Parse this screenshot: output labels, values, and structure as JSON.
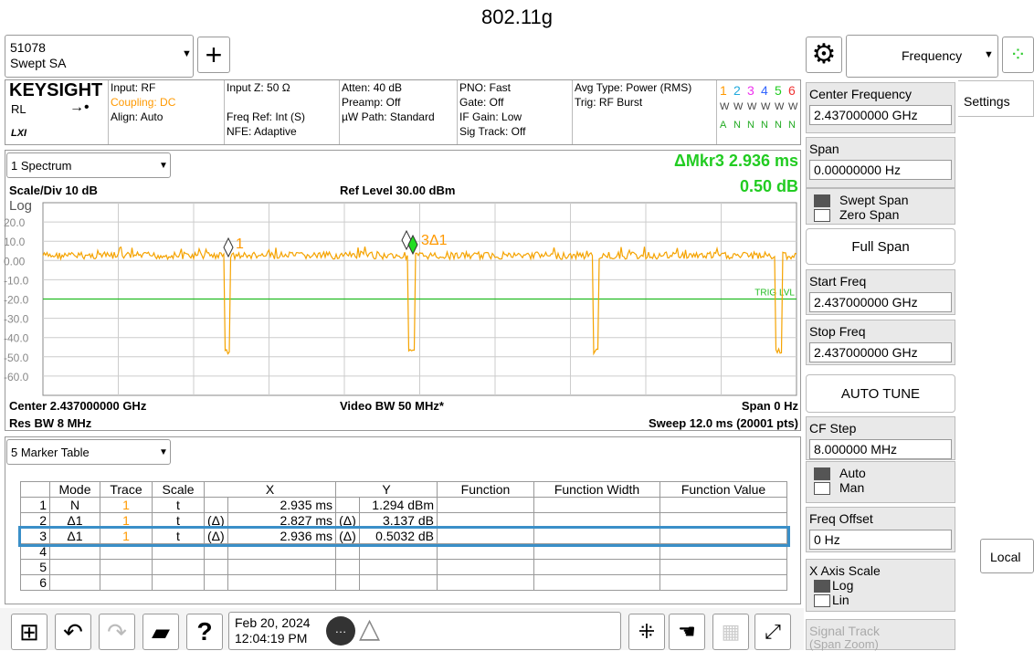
{
  "title": "802.11g",
  "top_bar": {
    "instrument": "51078",
    "mode": "Swept SA",
    "menu": "Frequency"
  },
  "info_bar": {
    "logo": "KEYSIGHT",
    "rl": "RL",
    "lxi": "LXI",
    "columns": [
      [
        "Input: RF",
        "Coupling: DC",
        "Align: Auto"
      ],
      [
        "Input Z: 50 Ω",
        "Freq Ref: Int (S)",
        "NFE: Adaptive"
      ],
      [
        "Atten: 40 dB",
        "Preamp: Off",
        "µW Path: Standard"
      ],
      [
        "PNO: Fast",
        "Gate: Off",
        "IF Gain: Low",
        "Sig Track: Off"
      ],
      [
        "Avg Type: Power (RMS)",
        "Trig: RF Burst"
      ]
    ],
    "trace_numbers": [
      "1",
      "2",
      "3",
      "4",
      "5",
      "6"
    ],
    "trace_types": [
      "W",
      "W",
      "W",
      "W",
      "W",
      "W"
    ],
    "trace_detectors": [
      "A",
      "N",
      "N",
      "N",
      "N",
      "N"
    ]
  },
  "spectrum": {
    "window": "1 Spectrum",
    "marker_readout": "ΔMkr3  2.936 ms",
    "marker_value": "0.50 dB",
    "scale": "Scale/Div 10 dB",
    "ref_level": "Ref Level 30.00 dBm",
    "log": "Log",
    "y_labels": [
      "20.0",
      "10.0",
      "0.00",
      "-10.0",
      "-20.0",
      "-30.0",
      "-40.0",
      "-50.0",
      "-60.0"
    ],
    "trig_label": "TRIG LVL",
    "markers": [
      "1",
      "3Δ1"
    ],
    "center": "Center 2.437000000 GHz",
    "video_bw": "Video BW 50 MHz*",
    "span": "Span 0 Hz",
    "res_bw": "Res BW 8 MHz",
    "sweep": "Sweep 12.0 ms (20001 pts)"
  },
  "marker_table": {
    "window": "5 Marker Table",
    "headers": [
      "Mode",
      "Trace",
      "Scale",
      "X",
      "Y",
      "Function",
      "Function Width",
      "Function Value"
    ],
    "rows": [
      {
        "n": "1",
        "mode": "N",
        "trace": "1",
        "scale": "t",
        "x": "2.935 ms",
        "y": "1.294 dBm"
      },
      {
        "n": "2",
        "mode": "Δ1",
        "trace": "1",
        "scale": "t",
        "x_ref": "(Δ)",
        "x": "2.827 ms",
        "y_ref": "(Δ)",
        "y": "3.137 dB"
      },
      {
        "n": "3",
        "mode": "Δ1",
        "trace": "1",
        "scale": "t",
        "x_ref": "(Δ)",
        "x": "2.936 ms",
        "y_ref": "(Δ)",
        "y": "0.5032 dB"
      },
      {
        "n": "4"
      },
      {
        "n": "5"
      },
      {
        "n": "6"
      }
    ]
  },
  "softkeys": [
    {
      "label": "Center Frequency",
      "value": "2.437000000 GHz"
    },
    {
      "label": "Span",
      "value": "0.00000000 Hz"
    },
    {
      "options": [
        "Swept Span",
        "Zero Span"
      ]
    },
    {
      "button": "Full Span"
    },
    {
      "label": "Start Freq",
      "value": "2.437000000 GHz"
    },
    {
      "label": "Stop Freq",
      "value": "2.437000000 GHz"
    },
    {
      "button": "AUTO TUNE"
    },
    {
      "label": "CF Step",
      "value": "8.000000 MHz"
    },
    {
      "options": [
        "Auto",
        "Man"
      ]
    },
    {
      "label": "Freq Offset",
      "value": "0 Hz"
    },
    {
      "label": "X Axis Scale",
      "options": [
        "Log",
        "Lin"
      ]
    },
    {
      "label": "Signal Track",
      "sub": "(Span Zoom)"
    }
  ],
  "side": {
    "tab": "Settings",
    "local": "Local"
  },
  "status": {
    "date": "Feb 20, 2024",
    "time": "12:04:19 PM"
  }
}
